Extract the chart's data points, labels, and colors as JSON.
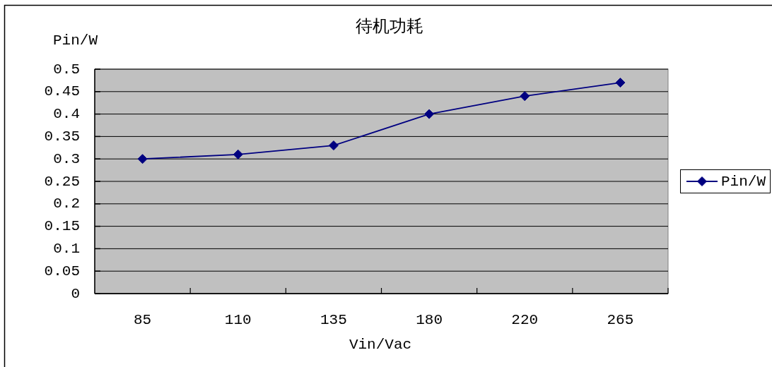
{
  "chart_data": {
    "type": "line",
    "title": "待机功耗",
    "ylabel": "Pin/W",
    "xlabel": "Vin/Vac",
    "categories": [
      "85",
      "110",
      "135",
      "180",
      "220",
      "265"
    ],
    "series": [
      {
        "name": "Pin/W",
        "color": "#000080",
        "values": [
          0.3,
          0.31,
          0.33,
          0.4,
          0.44,
          0.47
        ]
      }
    ],
    "ylim": [
      0,
      0.5
    ],
    "yticks": [
      0,
      0.05,
      0.1,
      0.15,
      0.2,
      0.25,
      0.3,
      0.35,
      0.4,
      0.45,
      0.5
    ],
    "grid": "y",
    "legend": "right",
    "marker": "diamond"
  }
}
